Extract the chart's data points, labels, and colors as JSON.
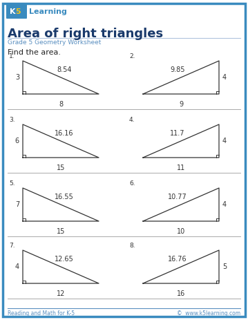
{
  "title": "Area of right triangles",
  "subtitle": "Grade 5 Geometry Worksheet",
  "instruction": "Find the area.",
  "bg_color": "#ffffff",
  "border_color": "#3a8bbf",
  "title_color": "#1a3a6b",
  "subtitle_color": "#5a8fc0",
  "footer_left": "Reading and Math for K-5",
  "footer_right": "©  www.k5learning.com",
  "problems": [
    {
      "num": "1.",
      "triangle_type": "left_tall",
      "side_labels": {
        "vert": "3",
        "hyp": "8.54",
        "base": "8"
      }
    },
    {
      "num": "2.",
      "triangle_type": "right_tall",
      "side_labels": {
        "vert": "4",
        "hyp": "9.85",
        "base": "9"
      }
    },
    {
      "num": "3.",
      "triangle_type": "left_tall",
      "side_labels": {
        "vert": "6",
        "hyp": "16.16",
        "base": "15"
      }
    },
    {
      "num": "4.",
      "triangle_type": "right_tall",
      "side_labels": {
        "vert": "4",
        "hyp": "11.7",
        "base": "11"
      }
    },
    {
      "num": "5.",
      "triangle_type": "left_tall",
      "side_labels": {
        "vert": "7",
        "hyp": "16.55",
        "base": "15"
      }
    },
    {
      "num": "6.",
      "triangle_type": "right_tall",
      "side_labels": {
        "vert": "4",
        "hyp": "10.77",
        "base": "10"
      }
    },
    {
      "num": "7.",
      "triangle_type": "left_tall",
      "side_labels": {
        "vert": "4",
        "hyp": "12.65",
        "base": "12"
      }
    },
    {
      "num": "8.",
      "triangle_type": "right_tall",
      "side_labels": {
        "vert": "5",
        "hyp": "16.76",
        "base": "16"
      }
    }
  ]
}
